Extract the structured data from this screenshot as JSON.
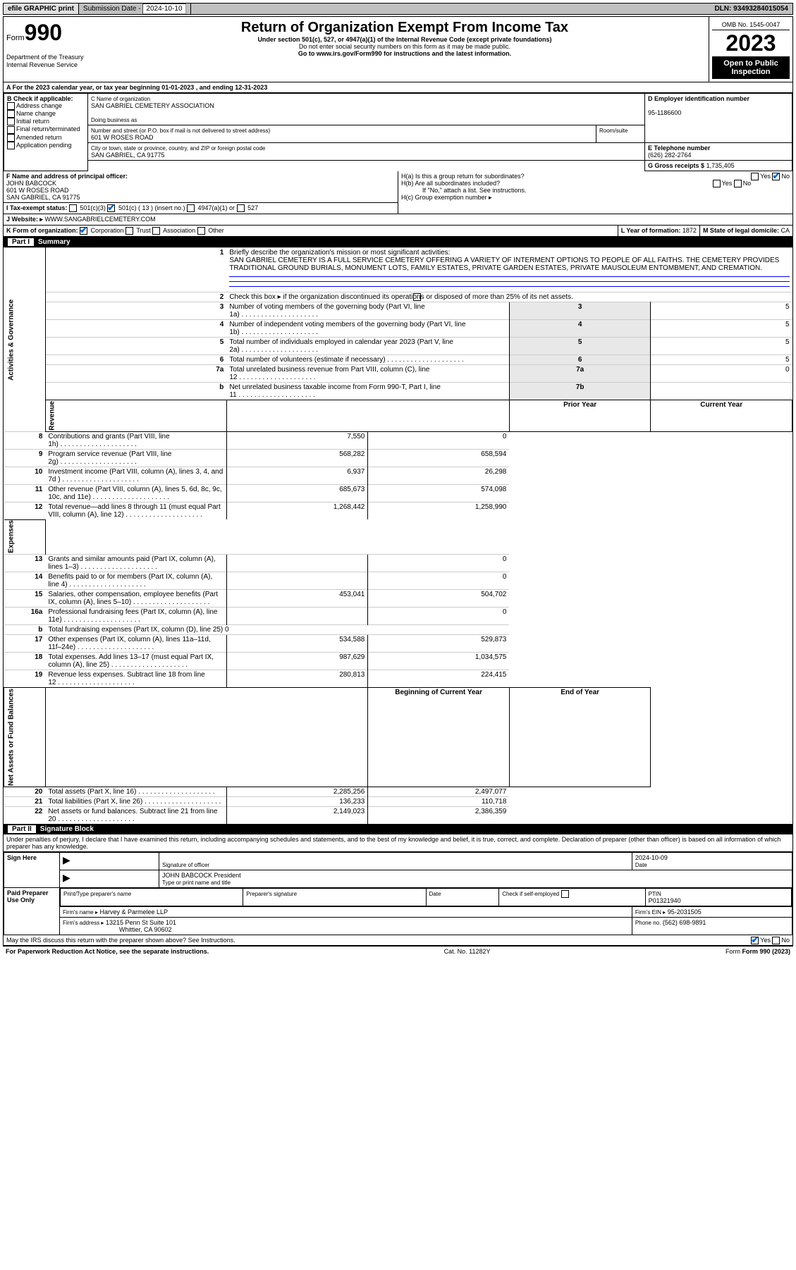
{
  "headerBar": {
    "efile": "efile GRAPHIC print",
    "subLabel": "Submission Date",
    "subDate": "2024-10-10",
    "dln": "DLN: 93493284015054"
  },
  "title": {
    "formPrefix": "Form",
    "formNo": "990",
    "main": "Return of Organization Exempt From Income Tax",
    "sub1": "Under section 501(c), 527, or 4947(a)(1) of the Internal Revenue Code (except private foundations)",
    "sub2": "Do not enter social security numbers on this form as it may be made public.",
    "sub3": "Go to www.irs.gov/Form990 for instructions and the latest information.",
    "dept": "Department of the Treasury Internal Revenue Service",
    "omb": "OMB No. 1545-0047",
    "year": "2023",
    "open": "Open to Public Inspection"
  },
  "periodLine": "A For the 2023 calendar year, or tax year beginning 01-01-2023   , and ending 12-31-2023",
  "boxB": {
    "label": "B Check if applicable:",
    "items": [
      "Address change",
      "Name change",
      "Initial return",
      "Final return/terminated",
      "Amended return",
      "Application pending"
    ]
  },
  "boxC": {
    "nameLabel": "C Name of organization",
    "name": "SAN GABRIEL CEMETERY ASSOCIATION",
    "dbaLabel": "Doing business as",
    "streetLabel": "Number and street (or P.O. box if mail is not delivered to street address)",
    "street": "601 W ROSES ROAD",
    "suiteLabel": "Room/suite",
    "cityLabel": "City or town, state or province, country, and ZIP or foreign postal code",
    "city": "SAN GABRIEL, CA  91775"
  },
  "boxD": {
    "label": "D Employer identification number",
    "value": "95-1186600"
  },
  "boxE": {
    "label": "E Telephone number",
    "value": "(626) 282-2764"
  },
  "boxG": {
    "label": "G Gross receipts $",
    "value": "1,735,405"
  },
  "boxF": {
    "label": "F Name and address of principal officer:",
    "name": "JOHN BABCOCK",
    "addr1": "601 W ROSES ROAD",
    "addr2": "SAN GABRIEL, CA  91775"
  },
  "boxH": {
    "a": "H(a)  Is this a group return for subordinates?",
    "b": "H(b)  Are all subordinates included?",
    "bNote": "If \"No,\" attach a list. See instructions.",
    "c": "H(c)  Group exemption number  ▸"
  },
  "boxI": {
    "label": "I   Tax-exempt status:",
    "opt2": "501(c) ( 13 ) (insert no.)",
    "opt1": "501(c)(3)",
    "opt3": "4947(a)(1) or",
    "opt4": "527"
  },
  "boxJ": {
    "label": "J   Website:  ▸",
    "value": "WWW.SANGABRIELCEMETERY.COM"
  },
  "boxK": {
    "label": "K Form of organization:",
    "opts": [
      "Corporation",
      "Trust",
      "Association",
      "Other"
    ]
  },
  "boxL": {
    "label": "L Year of formation:",
    "value": "1872"
  },
  "boxM": {
    "label": "M State of legal domicile:",
    "value": "CA"
  },
  "part1": {
    "header": "Summary",
    "mission": {
      "label": "Briefly describe the organization's mission or most significant activities:",
      "text": "SAN GABRIEL CEMETERY IS A FULL SERVICE CEMETERY OFFERING A VARIETY OF INTERMENT OPTIONS TO PEOPLE OF ALL FAITHS. THE CEMETERY PROVIDES TRADITIONAL GROUND BURIALS, MONUMENT LOTS, FAMILY ESTATES, PRIVATE GARDEN ESTATES, PRIVATE MAUSOLEUM ENTOMBMENT, AND CREMATION."
    },
    "line2": "Check this box ▸        if the organization discontinued its operations or disposed of more than 25% of its net assets.",
    "sideLabels": {
      "gov": "Activities & Governance",
      "rev": "Revenue",
      "exp": "Expenses",
      "net": "Net Assets or Fund Balances"
    },
    "cols": {
      "prior": "Prior Year",
      "current": "Current Year",
      "begin": "Beginning of Current Year",
      "end": "End of Year"
    },
    "rows": [
      {
        "n": "3",
        "t": "Number of voting members of the governing body (Part VI, line 1a)",
        "box": "3",
        "v2": "5"
      },
      {
        "n": "4",
        "t": "Number of independent voting members of the governing body (Part VI, line 1b)",
        "box": "4",
        "v2": "5"
      },
      {
        "n": "5",
        "t": "Total number of individuals employed in calendar year 2023 (Part V, line 2a)",
        "box": "5",
        "v2": "5"
      },
      {
        "n": "6",
        "t": "Total number of volunteers (estimate if necessary)",
        "box": "6",
        "v2": "5"
      },
      {
        "n": "7a",
        "t": "Total unrelated business revenue from Part VIII, column (C), line 12",
        "box": "7a",
        "v2": "0"
      },
      {
        "n": "b",
        "t": "Net unrelated business taxable income from Form 990-T, Part I, line 11",
        "box": "7b",
        "v2": ""
      }
    ],
    "revRows": [
      {
        "n": "8",
        "t": "Contributions and grants (Part VIII, line 1h)",
        "v1": "7,550",
        "v2": "0"
      },
      {
        "n": "9",
        "t": "Program service revenue (Part VIII, line 2g)",
        "v1": "568,282",
        "v2": "658,594"
      },
      {
        "n": "10",
        "t": "Investment income (Part VIII, column (A), lines 3, 4, and 7d )",
        "v1": "6,937",
        "v2": "26,298"
      },
      {
        "n": "11",
        "t": "Other revenue (Part VIII, column (A), lines 5, 6d, 8c, 9c, 10c, and 11e)",
        "v1": "685,673",
        "v2": "574,098"
      },
      {
        "n": "12",
        "t": "Total revenue—add lines 8 through 11 (must equal Part VIII, column (A), line 12)",
        "v1": "1,268,442",
        "v2": "1,258,990"
      }
    ],
    "expRows": [
      {
        "n": "13",
        "t": "Grants and similar amounts paid (Part IX, column (A), lines 1–3)",
        "v1": "",
        "v2": "0"
      },
      {
        "n": "14",
        "t": "Benefits paid to or for members (Part IX, column (A), line 4)",
        "v1": "",
        "v2": "0"
      },
      {
        "n": "15",
        "t": "Salaries, other compensation, employee benefits (Part IX, column (A), lines 5–10)",
        "v1": "453,041",
        "v2": "504,702"
      },
      {
        "n": "16a",
        "t": "Professional fundraising fees (Part IX, column (A), line 11e)",
        "v1": "",
        "v2": "0"
      },
      {
        "n": "b",
        "t": "Total fundraising expenses (Part IX, column (D), line 25) 0",
        "noVal": true
      },
      {
        "n": "17",
        "t": "Other expenses (Part IX, column (A), lines 11a–11d, 11f–24e)",
        "v1": "534,588",
        "v2": "529,873"
      },
      {
        "n": "18",
        "t": "Total expenses. Add lines 13–17 (must equal Part IX, column (A), line 25)",
        "v1": "987,629",
        "v2": "1,034,575"
      },
      {
        "n": "19",
        "t": "Revenue less expenses. Subtract line 18 from line 12",
        "v1": "280,813",
        "v2": "224,415"
      }
    ],
    "netRows": [
      {
        "n": "20",
        "t": "Total assets (Part X, line 16)",
        "v1": "2,285,256",
        "v2": "2,497,077"
      },
      {
        "n": "21",
        "t": "Total liabilities (Part X, line 26)",
        "v1": "136,233",
        "v2": "110,718"
      },
      {
        "n": "22",
        "t": "Net assets or fund balances. Subtract line 21 from line 20",
        "v1": "2,149,023",
        "v2": "2,386,359"
      }
    ]
  },
  "part2": {
    "header": "Signature Block",
    "perjury": "Under penalties of perjury, I declare that I have examined this return, including accompanying schedules and statements, and to the best of my knowledge and belief, it is true, correct, and complete. Declaration of preparer (other than officer) is based on all information of which preparer has any knowledge.",
    "signHere": "Sign Here",
    "sigOfficer": "Signature of officer",
    "date": "Date",
    "dateVal": "2024-10-09",
    "nameTitle": "JOHN BABCOCK  President",
    "typeName": "Type or print name and title",
    "paid": "Paid Preparer Use Only",
    "prepName": "Print/Type preparer's name",
    "prepSig": "Preparer's signature",
    "ptin": "PTIN",
    "ptinVal": "P01321940",
    "selfEmp": "Check         if self-employed",
    "firmName": "Firm's name      ▸",
    "firmNameVal": "Harvey & Parmelee LLP",
    "firmEin": "Firm's EIN  ▸",
    "firmEinVal": "95-2031505",
    "firmAddr": "Firm's address ▸",
    "firmAddrVal1": "13215 Penn St Suite 101",
    "firmAddrVal2": "Whittier, CA  90602",
    "phone": "Phone no.",
    "phoneVal": "(562) 698-9891",
    "discuss": "May the IRS discuss this return with the preparer shown above? See Instructions."
  },
  "footer": {
    "left": "For Paperwork Reduction Act Notice, see the separate instructions.",
    "mid": "Cat. No. 11282Y",
    "right": "Form 990 (2023)"
  }
}
